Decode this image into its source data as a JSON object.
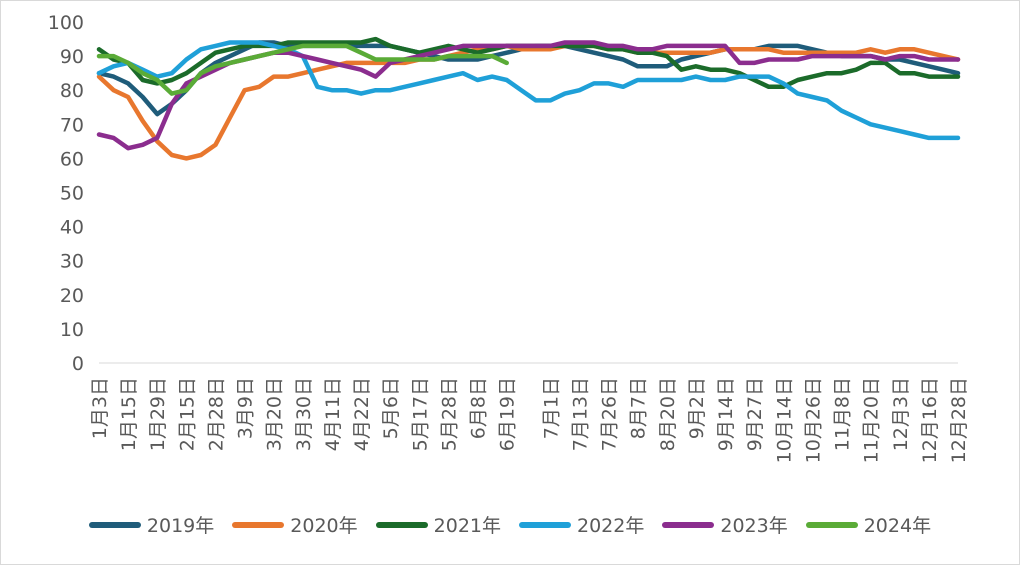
{
  "chart_data": {
    "type": "line",
    "title": "",
    "xlabel": "",
    "ylabel": "",
    "ylim": [
      0,
      100
    ],
    "yticks": [
      0,
      10,
      20,
      30,
      40,
      50,
      60,
      70,
      80,
      90,
      100
    ],
    "xtick_labels": [
      "1月3日",
      "1月15日",
      "1月29日",
      "2月15日",
      "2月28日",
      "3月9日",
      "3月20日",
      "3月30日",
      "4月11日",
      "4月22日",
      "5月6日",
      "5月17日",
      "5月28日",
      "6月8日",
      "6月19日",
      "7月1日",
      "7月13日",
      "7月26日",
      "8月7日",
      "8月20日",
      "9月2日",
      "9月14日",
      "9月27日",
      "10月14日",
      "10月26日",
      "11月8日",
      "11月20日",
      "12月3日",
      "12月16日",
      "12月28日"
    ],
    "legend_position": "bottom",
    "gridlines": false,
    "series": [
      {
        "name": "2019年",
        "color": "#1f5c7a",
        "values": [
          85,
          84,
          82,
          78,
          73,
          76,
          80,
          85,
          88,
          90,
          92,
          94,
          94,
          93,
          93,
          93,
          93,
          93,
          93,
          93,
          93,
          92,
          91,
          90,
          89,
          89,
          89,
          90,
          91,
          92,
          93,
          93,
          93,
          92,
          91,
          90,
          89,
          87,
          87,
          87,
          89,
          90,
          91,
          92,
          92,
          92,
          93,
          93,
          93,
          92,
          91,
          90,
          90,
          90,
          89,
          89,
          88,
          87,
          86,
          85
        ]
      },
      {
        "name": "2020年",
        "color": "#e8772e",
        "values": [
          84,
          80,
          78,
          71,
          65,
          61,
          60,
          61,
          64,
          72,
          80,
          81,
          84,
          84,
          85,
          86,
          87,
          88,
          88,
          88,
          88,
          88,
          89,
          89,
          90,
          91,
          92,
          92,
          93,
          92,
          92,
          92,
          93,
          93,
          93,
          92,
          92,
          91,
          91,
          91,
          91,
          91,
          91,
          92,
          92,
          92,
          92,
          91,
          91,
          91,
          91,
          91,
          91,
          92,
          91,
          92,
          92,
          91,
          90,
          89
        ]
      },
      {
        "name": "2021年",
        "color": "#1b6b2a",
        "values": [
          92,
          89,
          88,
          83,
          82,
          83,
          85,
          88,
          91,
          92,
          93,
          93,
          93,
          94,
          94,
          94,
          94,
          94,
          94,
          95,
          93,
          92,
          91,
          92,
          93,
          92,
          91,
          92,
          93,
          93,
          93,
          93,
          93,
          93,
          93,
          92,
          92,
          91,
          91,
          90,
          86,
          87,
          86,
          86,
          85,
          83,
          81,
          81,
          83,
          84,
          85,
          85,
          86,
          88,
          88,
          85,
          85,
          84,
          84,
          84
        ]
      },
      {
        "name": "2022年",
        "color": "#1fa0d8",
        "values": [
          85,
          87,
          88,
          86,
          84,
          85,
          89,
          92,
          93,
          94,
          94,
          94,
          93,
          92,
          90,
          81,
          80,
          80,
          79,
          80,
          80,
          81,
          82,
          83,
          84,
          85,
          83,
          84,
          83,
          80,
          77,
          77,
          79,
          80,
          82,
          82,
          81,
          83,
          83,
          83,
          83,
          84,
          83,
          83,
          84,
          84,
          84,
          82,
          79,
          78,
          77,
          74,
          72,
          70,
          69,
          68,
          67,
          66,
          66,
          66
        ]
      },
      {
        "name": "2023年",
        "color": "#8b2d8e",
        "values": [
          67,
          66,
          63,
          64,
          66,
          76,
          82,
          84,
          86,
          88,
          89,
          90,
          91,
          91,
          90,
          89,
          88,
          87,
          86,
          84,
          88,
          89,
          90,
          91,
          92,
          93,
          93,
          93,
          93,
          93,
          93,
          93,
          94,
          94,
          94,
          93,
          93,
          92,
          92,
          93,
          93,
          93,
          93,
          93,
          88,
          88,
          89,
          89,
          89,
          90,
          90,
          90,
          90,
          90,
          89,
          90,
          90,
          89,
          89,
          89
        ]
      },
      {
        "name": "2024年",
        "color": "#5aab37",
        "values": [
          90,
          90,
          88,
          85,
          83,
          79,
          80,
          85,
          87,
          88,
          89,
          90,
          91,
          92,
          93,
          93,
          93,
          93,
          91,
          89,
          89,
          89,
          89,
          89,
          90,
          90,
          90,
          90,
          88
        ]
      }
    ]
  }
}
